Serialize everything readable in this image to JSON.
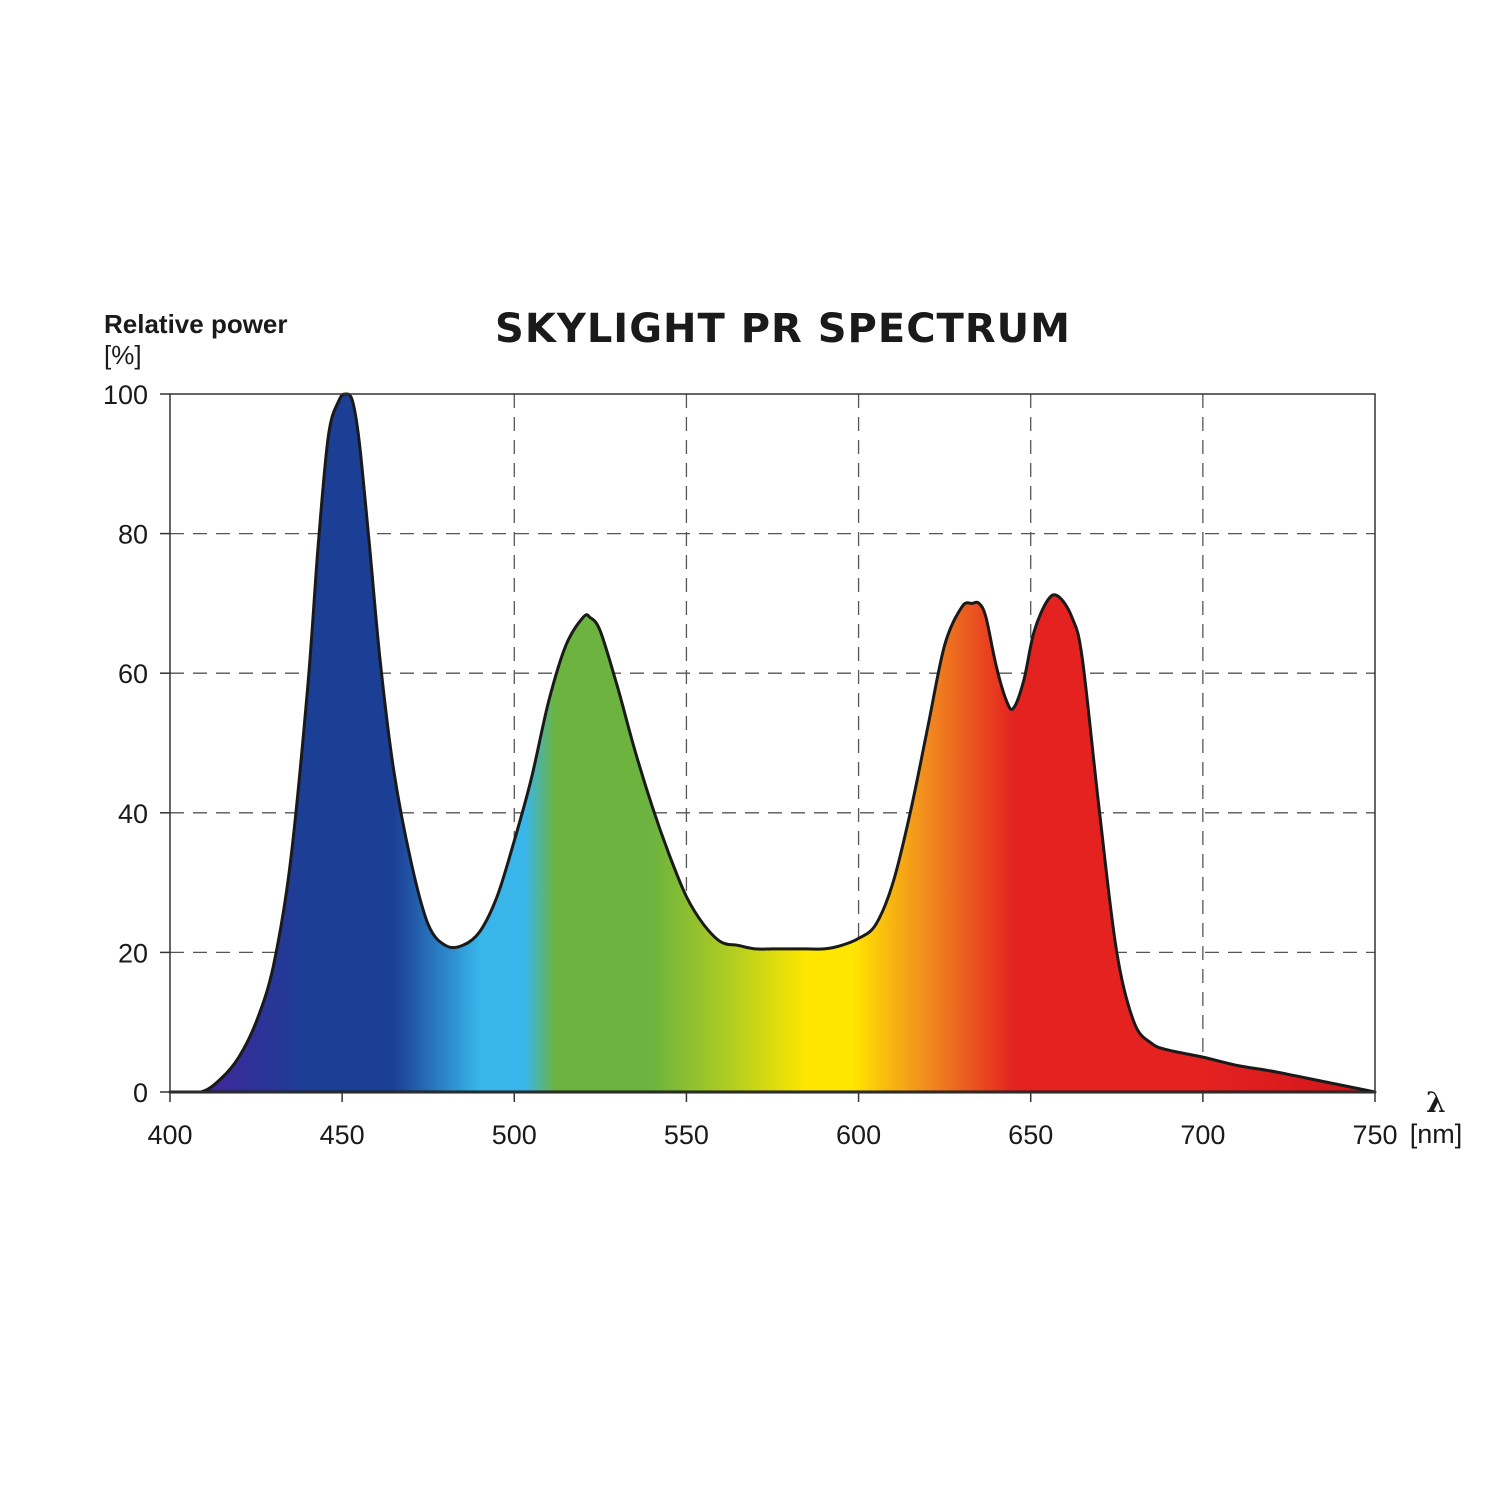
{
  "chart_data": {
    "type": "area",
    "title": "SKYLIGHT PR SPECTRUM",
    "ylabel": "Relative power",
    "ylabel_unit": "[%]",
    "xlabel_symbol": "λ",
    "xlabel_unit": "[nm]",
    "xlim": [
      400,
      750
    ],
    "ylim": [
      0,
      100
    ],
    "x_ticks": [
      400,
      450,
      500,
      550,
      600,
      650,
      700,
      750
    ],
    "x_tick_labels": [
      "400",
      "450",
      "500",
      "550",
      "600",
      "650",
      "700",
      "750"
    ],
    "y_ticks": [
      0,
      20,
      40,
      60,
      80,
      100
    ],
    "y_tick_labels": [
      "0",
      "20",
      "40",
      "60",
      "80",
      "100"
    ],
    "grid": true,
    "series": [
      {
        "x": [
          400,
          409,
          415,
          420,
          425,
          430,
          435,
          440,
          443,
          446,
          449,
          451,
          453,
          455,
          458,
          461,
          465,
          470,
          475,
          480,
          485,
          490,
          495,
          500,
          505,
          510,
          515,
          520,
          522,
          525,
          530,
          535,
          540,
          545,
          550,
          555,
          560,
          565,
          570,
          575,
          580,
          585,
          590,
          595,
          600,
          605,
          610,
          615,
          620,
          625,
          630,
          633,
          635,
          637,
          640,
          643,
          645,
          648,
          651,
          655,
          658,
          662,
          665,
          670,
          675,
          680,
          685,
          690,
          700,
          710,
          720,
          730,
          740,
          750
        ],
        "y": [
          0,
          0,
          2,
          5,
          10,
          18,
          33,
          58,
          78,
          94,
          99,
          100,
          99,
          93,
          78,
          62,
          46,
          33,
          24,
          21,
          21,
          23,
          28,
          36,
          45,
          56,
          64,
          68,
          68,
          66,
          58,
          49,
          41,
          34,
          28,
          24,
          21.5,
          21,
          20.5,
          20.5,
          20.5,
          20.5,
          20.5,
          21,
          22,
          24,
          30,
          40,
          52,
          64,
          69.5,
          70,
          70,
          68,
          61,
          56,
          55,
          59,
          66,
          70.5,
          71,
          68,
          62,
          40,
          20,
          10,
          7,
          6,
          5,
          3.8,
          3,
          2,
          1,
          0
        ]
      }
    ],
    "colors": {
      "violet": "#3a2a9a",
      "blue": "#1b3f95",
      "sky": "#38b6ea",
      "green": "#6cb33f",
      "yellow": "#ffe600",
      "orange": "#f18a1f",
      "red": "#e42320",
      "dark_red": "#d0141a"
    }
  }
}
